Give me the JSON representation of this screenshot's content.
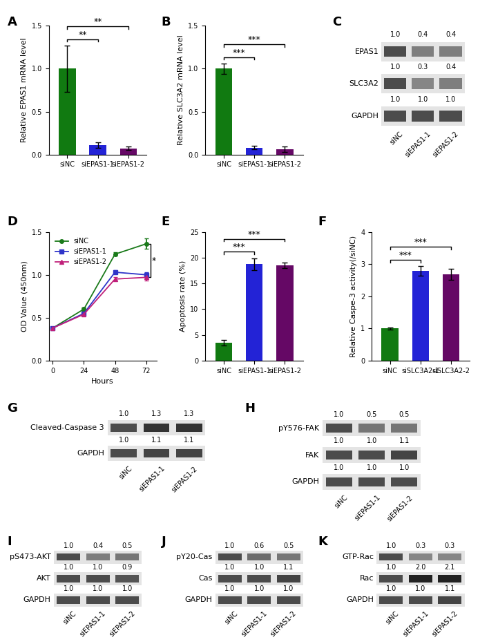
{
  "chart_data": [
    {
      "panel": "A",
      "type": "bar",
      "categories": [
        "siNC",
        "siEPAS1-1",
        "siEPAS1-2"
      ],
      "values": [
        1.0,
        0.11,
        0.07
      ],
      "errors": [
        0.27,
        0.03,
        0.02
      ],
      "colors": [
        "#117a11",
        "#2323d6",
        "#650865"
      ],
      "y_label": "Relative EPAS1 mRNA level",
      "ylim": [
        0,
        1.5
      ],
      "yticks": [
        {
          "value": 0,
          "label": "0.0"
        },
        {
          "value": 0.5,
          "label": "0.5"
        },
        {
          "value": 1.0,
          "label": "1.0"
        },
        {
          "value": 1.5,
          "label": "1.5"
        }
      ],
      "significance": [
        {
          "pair": [
            "siNC",
            "siEPAS1-1"
          ],
          "label": "**"
        },
        {
          "pair": [
            "siNC",
            "siEPAS1-2"
          ],
          "label": "**"
        }
      ]
    },
    {
      "panel": "B",
      "type": "bar",
      "categories": [
        "siNC",
        "siEPAS1-1",
        "siEPAS1-2"
      ],
      "values": [
        1.0,
        0.08,
        0.06
      ],
      "errors": [
        0.06,
        0.02,
        0.03
      ],
      "colors": [
        "#117a11",
        "#2323d6",
        "#650865"
      ],
      "y_label": "Relative SLC3A2 mRNA level",
      "ylim": [
        0,
        1.5
      ],
      "yticks": [
        {
          "value": 0,
          "label": "0.0"
        },
        {
          "value": 0.5,
          "label": "0.5"
        },
        {
          "value": 1.0,
          "label": "1.0"
        },
        {
          "value": 1.5,
          "label": "1.5"
        }
      ],
      "significance": [
        {
          "pair": [
            "siNC",
            "siEPAS1-1"
          ],
          "label": "***"
        },
        {
          "pair": [
            "siNC",
            "siEPAS1-2"
          ],
          "label": "***"
        }
      ]
    },
    {
      "panel": "D",
      "type": "line",
      "x": [
        0,
        24,
        48,
        72
      ],
      "x_label": "Hours",
      "y_label": "OD Value (450nm)",
      "xlim": [
        -3,
        80
      ],
      "xticks": [
        0,
        24,
        48,
        72
      ],
      "ylim": [
        0,
        1.5
      ],
      "yticks": [
        {
          "value": 0,
          "label": "0.0"
        },
        {
          "value": 0.5,
          "label": "0.5"
        },
        {
          "value": 1.0,
          "label": "1.0"
        },
        {
          "value": 1.5,
          "label": "1.5"
        }
      ],
      "legend": "upper left",
      "series": [
        {
          "name": "siNC",
          "color": "#1a7a1a",
          "marker": "circle",
          "values": [
            0.38,
            0.6,
            1.24,
            1.36
          ],
          "errors": [
            0.01,
            0.02,
            0.02,
            0.06
          ]
        },
        {
          "name": "siEPAS1-1",
          "color": "#2f35c9",
          "marker": "square",
          "values": [
            0.38,
            0.55,
            1.03,
            1.0
          ],
          "errors": [
            0.01,
            0.02,
            0.02,
            0.03
          ]
        },
        {
          "name": "siEPAS1-2",
          "color": "#c0207a",
          "marker": "triangle",
          "values": [
            0.38,
            0.54,
            0.95,
            0.97
          ],
          "errors": [
            0.01,
            0.02,
            0.02,
            0.04
          ]
        }
      ],
      "significance": [
        {
          "pair": [
            "siNC",
            "siEPAS1-2"
          ],
          "label": "*"
        }
      ]
    },
    {
      "panel": "E",
      "type": "bar",
      "categories": [
        "siNC",
        "siEPAS1-1",
        "siEPAS1-2"
      ],
      "values": [
        3.5,
        18.7,
        18.5
      ],
      "errors": [
        0.5,
        1.2,
        0.6
      ],
      "colors": [
        "#117a11",
        "#2323d6",
        "#650865"
      ],
      "y_label": "Apoptosis rate (%)",
      "ylim": [
        0,
        25
      ],
      "yticks": [
        0,
        5,
        10,
        15,
        20,
        25
      ],
      "significance": [
        {
          "pair": [
            "siNC",
            "siEPAS1-1"
          ],
          "label": "***"
        },
        {
          "pair": [
            "siNC",
            "siEPAS1-2"
          ],
          "label": "***"
        }
      ]
    },
    {
      "panel": "F",
      "type": "bar",
      "categories": [
        "siNC",
        "siSLC3A2-1",
        "siSLC3A2-2"
      ],
      "values": [
        1.0,
        2.78,
        2.68
      ],
      "errors": [
        0.03,
        0.15,
        0.17
      ],
      "colors": [
        "#117a11",
        "#2323d6",
        "#650865"
      ],
      "y_label": "Relative Caspe-3 activity(/siNC)",
      "ylim": [
        0,
        4
      ],
      "yticks": [
        0,
        1,
        2,
        3,
        4
      ],
      "significance": [
        {
          "pair": [
            "siNC",
            "siSLC3A2-1"
          ],
          "label": "***"
        },
        {
          "pair": [
            "siNC",
            "siSLC3A2-2"
          ],
          "label": "***"
        }
      ]
    }
  ],
  "blots": [
    {
      "panel": "C",
      "lanes": [
        "siNC",
        "siEPAS1-1",
        "siEPAS1-2"
      ],
      "rows": [
        {
          "label": "EPAS1",
          "quantification": [
            1.0,
            0.4,
            0.4
          ]
        },
        {
          "label": "SLC3A2",
          "quantification": [
            1.0,
            0.3,
            0.4
          ]
        },
        {
          "label": "GAPDH",
          "quantification": [
            1.0,
            1.0,
            1.0
          ]
        }
      ]
    },
    {
      "panel": "G",
      "lanes": [
        "siNC",
        "siEPAS1-1",
        "siEPAS1-2"
      ],
      "rows": [
        {
          "label": "Cleaved-Caspase 3",
          "quantification": [
            1.0,
            1.3,
            1.3
          ]
        },
        {
          "label": "GAPDH",
          "quantification": [
            1.0,
            1.1,
            1.1
          ]
        }
      ]
    },
    {
      "panel": "H",
      "lanes": [
        "siNC",
        "siEPAS1-1",
        "siEPAS1-2"
      ],
      "rows": [
        {
          "label": "pY576-FAK",
          "quantification": [
            1.0,
            0.5,
            0.5
          ]
        },
        {
          "label": "FAK",
          "quantification": [
            1.0,
            1.0,
            1.1
          ]
        },
        {
          "label": "GAPDH",
          "quantification": [
            1.0,
            1.0,
            1.0
          ]
        }
      ]
    },
    {
      "panel": "I",
      "lanes": [
        "siNC",
        "siEPAS1-1",
        "siEPAS1-2"
      ],
      "rows": [
        {
          "label": "pS473-AKT",
          "quantification": [
            1.0,
            0.4,
            0.5
          ]
        },
        {
          "label": "AKT",
          "quantification": [
            1.0,
            1.0,
            0.9
          ]
        },
        {
          "label": "GAPDH",
          "quantification": [
            1.0,
            1.0,
            1.0
          ]
        }
      ]
    },
    {
      "panel": "J",
      "lanes": [
        "siNC",
        "siEPAS1-1",
        "siEPAS1-2"
      ],
      "rows": [
        {
          "label": "pY20-Cas",
          "quantification": [
            1.0,
            0.6,
            0.5
          ]
        },
        {
          "label": "Cas",
          "quantification": [
            1.0,
            1.0,
            1.1
          ]
        },
        {
          "label": "GAPDH",
          "quantification": [
            1.0,
            1.0,
            1.0
          ]
        }
      ]
    },
    {
      "panel": "K",
      "lanes": [
        "siNC",
        "siEPAS1-1",
        "siEPAS1-2"
      ],
      "rows": [
        {
          "label": "GTP-Rac",
          "quantification": [
            1.0,
            0.3,
            0.3
          ]
        },
        {
          "label": "Rac",
          "quantification": [
            1.0,
            2.0,
            2.1
          ]
        },
        {
          "label": "GAPDH",
          "quantification": [
            1.0,
            1.0,
            1.1
          ]
        }
      ]
    }
  ]
}
